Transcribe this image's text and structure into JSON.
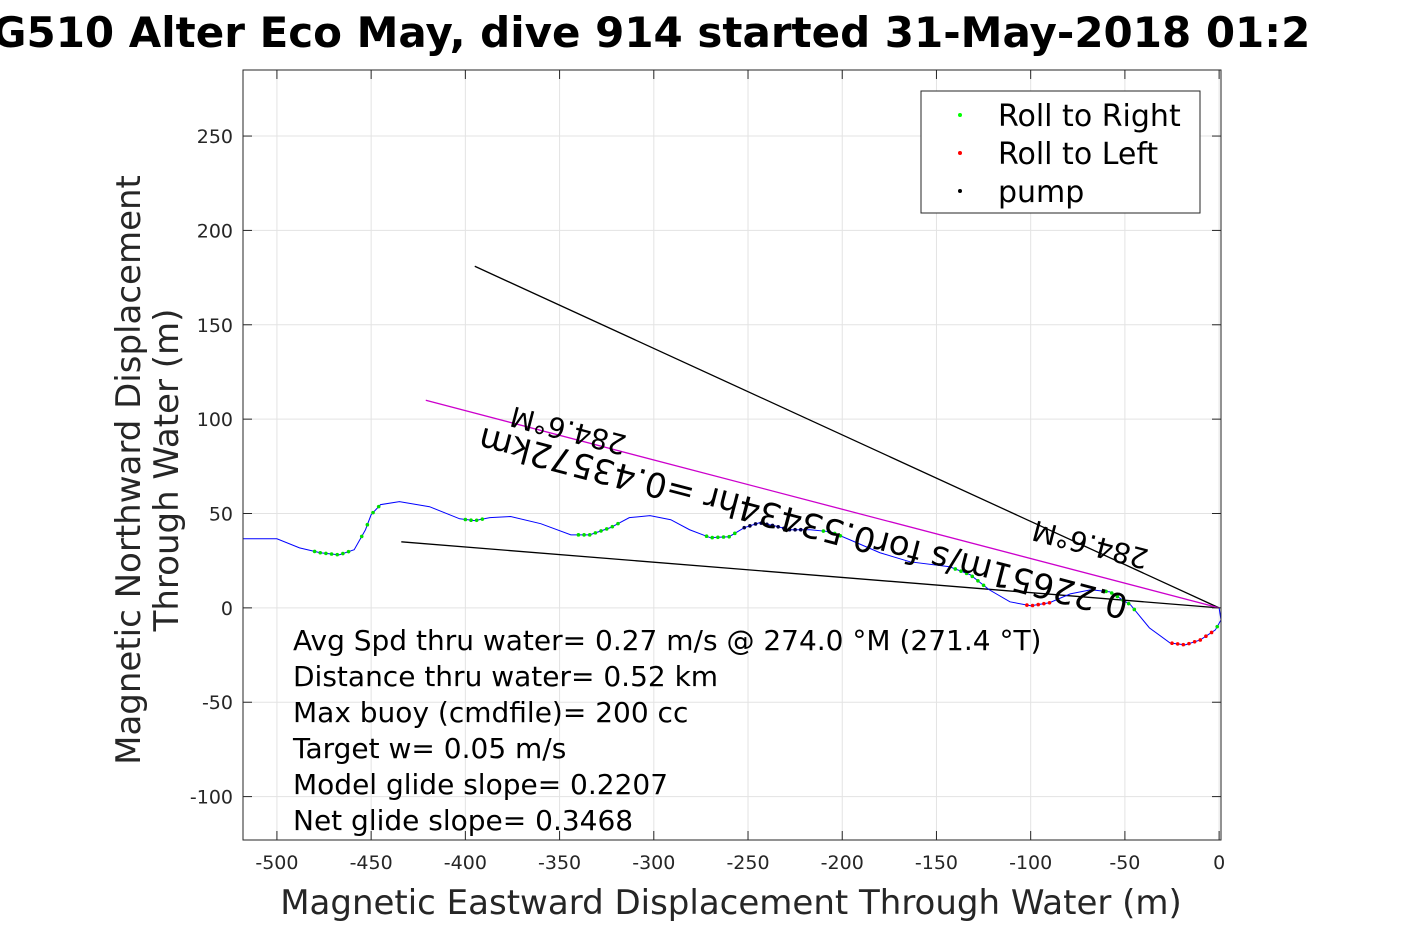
{
  "chart_data": {
    "type": "line",
    "title": "G510 Alter Eco May, dive 914 started 31-May-2018 01:2",
    "xlabel": "Magnetic Eastward Displacement Through Water (m)",
    "ylabel": "Magnetic Northward Displacement Through Water (m)",
    "xlim": [
      -518,
      1
    ],
    "ylim": [
      -123,
      285
    ],
    "grid": true,
    "xticks": [
      -500,
      -450,
      -400,
      -350,
      -300,
      -250,
      -200,
      -150,
      -100,
      -50,
      0
    ],
    "yticks": [
      -100,
      -50,
      0,
      50,
      100,
      150,
      200,
      250
    ],
    "legend": {
      "placement": "top-right",
      "entries": [
        {
          "label": "Roll to Right",
          "color": "#00ff00"
        },
        {
          "label": "Roll to Left",
          "color": "#ff0000"
        },
        {
          "label": "pump",
          "color": "#000000"
        }
      ]
    },
    "track": {
      "color": "#0000ff",
      "x": [
        -518,
        -500,
        -488,
        -477,
        -467,
        -459,
        -453,
        -450,
        -445,
        -435,
        -419,
        -403,
        -395,
        -387,
        -376,
        -360,
        -344,
        -334,
        -323,
        -313,
        -302,
        -291,
        -281,
        -270,
        -260,
        -252,
        -244,
        -236,
        -228,
        -217,
        -206,
        -196,
        -180,
        -164,
        -143,
        -132,
        -122,
        -111,
        -100,
        -90,
        -79,
        -68,
        -58,
        -47,
        -37,
        -26,
        -18,
        -10,
        -2,
        1,
        0
      ],
      "y": [
        36.6,
        36.6,
        31.8,
        29.2,
        28.1,
        30.8,
        41.4,
        49.4,
        54.7,
        56.3,
        53.6,
        47.2,
        46.2,
        47.8,
        48.4,
        44.6,
        38.7,
        38.7,
        42.5,
        47.8,
        48.9,
        46.7,
        41.4,
        37.2,
        37.7,
        42.5,
        45.1,
        43.5,
        41.4,
        41.4,
        40.3,
        36.1,
        29.2,
        24.4,
        21.8,
        17.5,
        9.6,
        3.2,
        1.1,
        2.7,
        7.4,
        9.6,
        8.5,
        1.6,
        -10.6,
        -18.6,
        -19.6,
        -17,
        -11.7,
        -6.4,
        0
      ]
    },
    "roll_right_ranges": [
      [
        -480,
        -462
      ],
      [
        -455,
        -445
      ],
      [
        -400,
        -390
      ],
      [
        -340,
        -318
      ],
      [
        -272,
        -255
      ],
      [
        -210,
        -200
      ],
      [
        -140,
        -125
      ],
      [
        -60,
        -44
      ],
      [
        -1,
        1
      ]
    ],
    "roll_left_ranges": [
      [
        -102,
        -88
      ],
      [
        -25,
        -4
      ]
    ],
    "pump_ranges": [
      [
        -252,
        -222
      ]
    ],
    "lines": [
      {
        "color": "#000000",
        "x": [
          -395,
          0
        ],
        "y": [
          181,
          0
        ]
      },
      {
        "color": "#000000",
        "x": [
          -434,
          0
        ],
        "y": [
          35,
          0
        ]
      },
      {
        "color": "#cc00cc",
        "x": [
          -421,
          0
        ],
        "y": [
          110,
          0
        ]
      }
    ],
    "rotated_labels": [
      "0.22651m/s for0.53434hr =0.43572km",
      "284.6°M",
      "284.6°M"
    ],
    "annotations": [
      "Avg Spd thru water=  0.27 m/s @ 274.0 °M (271.4 °T)",
      "Distance thru water=  0.52 km",
      "Max buoy (cmdfile)= 200 cc",
      "Target w= 0.05 m/s",
      "Model glide slope= 0.2207",
      "Net glide slope= 0.3468"
    ]
  }
}
